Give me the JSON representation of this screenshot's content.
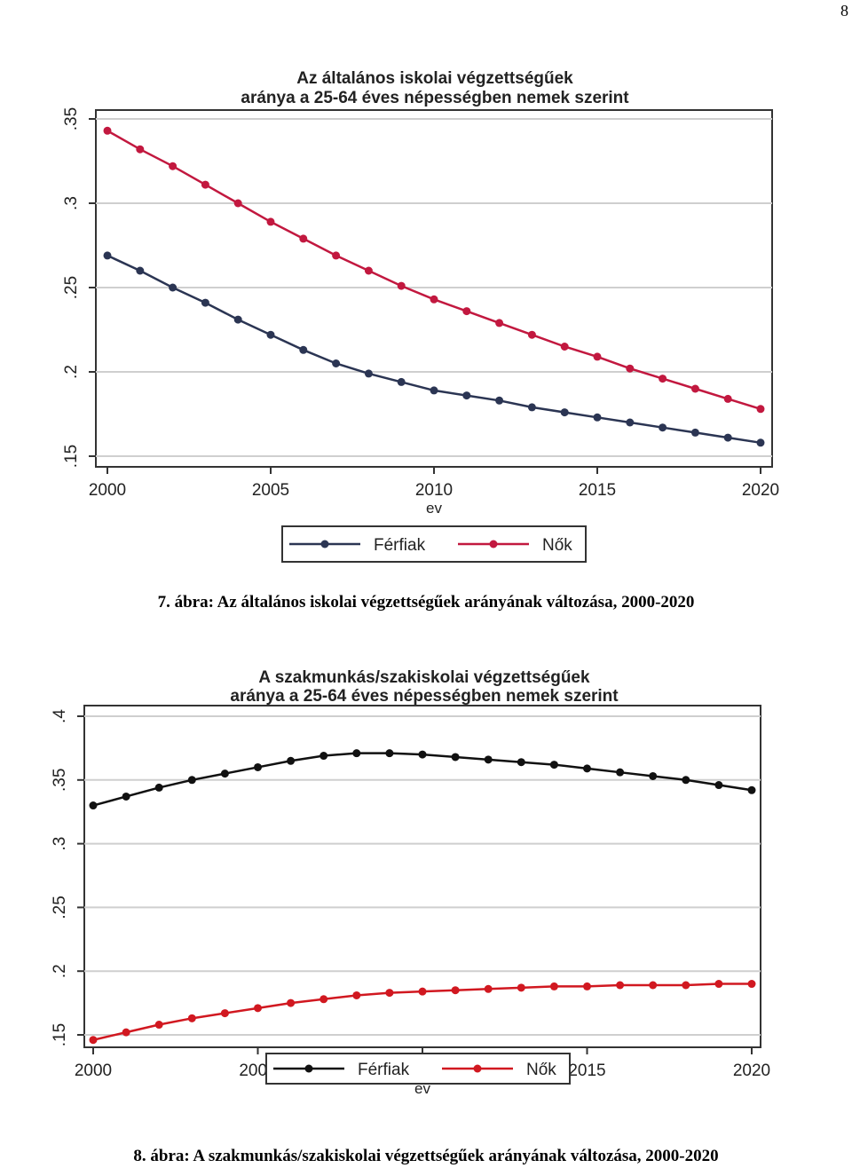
{
  "page_number": "8",
  "figures": [
    {
      "caption": "7. ábra: Az általános iskolai végzettségűek arányának változása, 2000-2020",
      "chart_data": {
        "type": "line",
        "title_line1": "Az általános iskolai végzettségűek",
        "title_line2": "aránya a 25-64 éves népességben nemek szerint",
        "xlabel": "ev",
        "ylabel": "",
        "x": [
          2000,
          2001,
          2002,
          2003,
          2004,
          2005,
          2006,
          2007,
          2008,
          2009,
          2010,
          2011,
          2012,
          2013,
          2014,
          2015,
          2016,
          2017,
          2018,
          2019,
          2020
        ],
        "xticks": [
          "2000",
          "2005",
          "2010",
          "2015",
          "2020"
        ],
        "yticks": [
          ".15",
          ".2",
          ".25",
          ".3",
          ".35"
        ],
        "xlim": [
          2000,
          2020
        ],
        "ylim": [
          0.15,
          0.35
        ],
        "grid": true,
        "legend_position": "bottom",
        "series": [
          {
            "name": "Férfiak",
            "color": "#2b3553",
            "values": [
              0.269,
              0.26,
              0.25,
              0.241,
              0.231,
              0.222,
              0.213,
              0.205,
              0.199,
              0.194,
              0.189,
              0.186,
              0.183,
              0.179,
              0.176,
              0.173,
              0.17,
              0.167,
              0.164,
              0.161,
              0.158
            ]
          },
          {
            "name": "Nők",
            "color": "#c2183f",
            "values": [
              0.343,
              0.332,
              0.322,
              0.311,
              0.3,
              0.289,
              0.279,
              0.269,
              0.26,
              0.251,
              0.243,
              0.236,
              0.229,
              0.222,
              0.215,
              0.209,
              0.202,
              0.196,
              0.19,
              0.184,
              0.178
            ]
          }
        ]
      }
    },
    {
      "caption": "8. ábra: A szakmunkás/szakiskolai végzettségűek arányának változása, 2000-2020",
      "chart_data": {
        "type": "line",
        "title_line1": "A szakmunkás/szakiskolai végzettségűek",
        "title_line2": "aránya a 25-64 éves népességben nemek szerint",
        "xlabel": "ev",
        "ylabel": "",
        "x": [
          2000,
          2001,
          2002,
          2003,
          2004,
          2005,
          2006,
          2007,
          2008,
          2009,
          2010,
          2011,
          2012,
          2013,
          2014,
          2015,
          2016,
          2017,
          2018,
          2019,
          2020
        ],
        "xticks": [
          "2000",
          "2005",
          "2010",
          "2015",
          "2020"
        ],
        "yticks": [
          ".15",
          ".2",
          ".25",
          ".3",
          ".35",
          ".4"
        ],
        "xlim": [
          2000,
          2020
        ],
        "ylim": [
          0.15,
          0.4
        ],
        "grid": true,
        "legend_position": "bottom",
        "series": [
          {
            "name": "Férfiak",
            "color": "#111111",
            "values": [
              0.33,
              0.337,
              0.344,
              0.35,
              0.355,
              0.36,
              0.365,
              0.369,
              0.371,
              0.371,
              0.37,
              0.368,
              0.366,
              0.364,
              0.362,
              0.359,
              0.356,
              0.353,
              0.35,
              0.346,
              0.342
            ]
          },
          {
            "name": "Nők",
            "color": "#d11820",
            "values": [
              0.146,
              0.152,
              0.158,
              0.163,
              0.167,
              0.171,
              0.175,
              0.178,
              0.181,
              0.183,
              0.184,
              0.185,
              0.186,
              0.187,
              0.188,
              0.188,
              0.189,
              0.189,
              0.189,
              0.19,
              0.19
            ]
          }
        ]
      }
    }
  ]
}
